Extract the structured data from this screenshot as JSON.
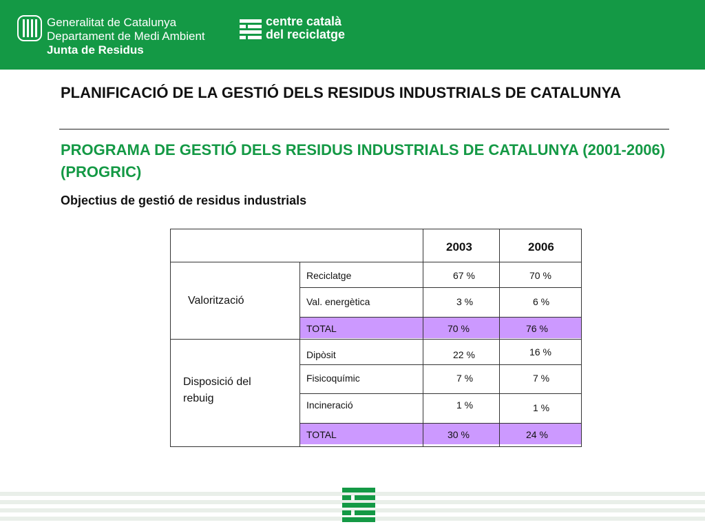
{
  "header": {
    "gen_line1": "Generalitat de Catalunya",
    "gen_line2": "Departament de Medi Ambient",
    "gen_line3": "Junta de Residus",
    "ccr_line1": "centre català",
    "ccr_line2": "del reciclatge",
    "gen_logo_icon": "generalitat-bars-icon",
    "ccr_logo_icon": "ccr-stripes-icon",
    "color": "#149945"
  },
  "titles": {
    "main": "PLANIFICACIÓ DE LA GESTIÓ DELS RESIDUS INDUSTRIALS DE CATALUNYA",
    "program": "PROGRAMA DE GESTIÓ DELS RESIDUS INDUSTRIALS DE CATALUNYA (2001-2006) (PROGRIC)",
    "objectives": "Objectius de gestió de residus industrials"
  },
  "table": {
    "year_headers": [
      "2003",
      "2006"
    ],
    "groups": [
      {
        "label": "Valorització",
        "rows": [
          {
            "label": "Reciclatge",
            "v2003": "67 %",
            "v2006": "70 %"
          },
          {
            "label": "Val. energètica",
            "v2003": "3 %",
            "v2006": "6 %"
          },
          {
            "label": "TOTAL",
            "v2003": "70 %",
            "v2006": "76 %"
          }
        ]
      },
      {
        "label_line1": "Disposició del",
        "label_line2": "rebuig",
        "rows": [
          {
            "label": "Dipòsit",
            "v2003": "22 %",
            "v2006": "16 %"
          },
          {
            "label": "Fisicoquímic",
            "v2003": "7 %",
            "v2006": "7 %"
          },
          {
            "label": "Incineració",
            "v2003": "1 %",
            "v2006": "1 %"
          },
          {
            "label": "TOTAL",
            "v2003": "30 %",
            "v2006": "24 %"
          }
        ]
      }
    ],
    "total_fill_color": "#cc99ff"
  },
  "footer": {
    "mark_icon": "ccr-stripes-icon"
  }
}
